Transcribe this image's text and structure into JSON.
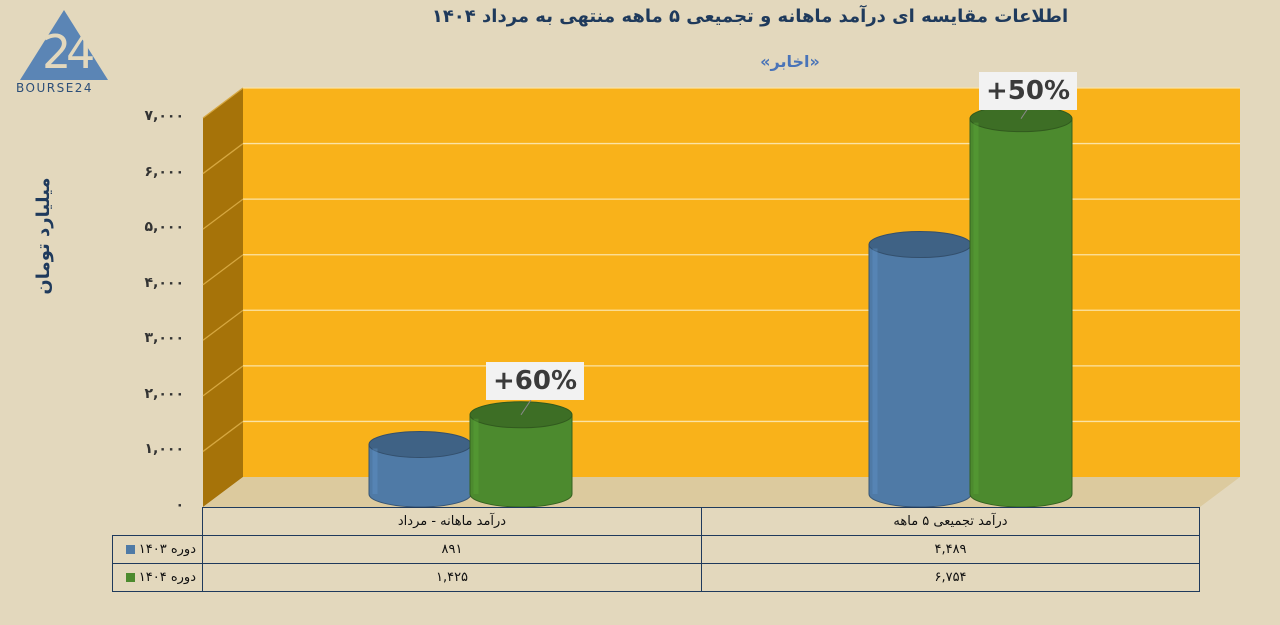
{
  "title": "اطلاعات مقایسه ای درآمد ماهانه و تجمیعی ۵ ماهه منتهی به مرداد ۱۴۰۴",
  "subtitle": "«اخابر»",
  "logo_text": "BOURSE24",
  "colors": {
    "background": "#e3d8bd",
    "plot": "#f9b21a",
    "wall_side": "#a67309",
    "series_1403": "#4f7aa6",
    "series_1404": "#4c8a2e"
  },
  "chart_data": {
    "type": "bar",
    "ylabel": "میلیارد تومان",
    "ylim": [
      0,
      7000
    ],
    "yticks": [
      "۰",
      "۱,۰۰۰",
      "۲,۰۰۰",
      "۳,۰۰۰",
      "۴,۰۰۰",
      "۵,۰۰۰",
      "۶,۰۰۰",
      "۷,۰۰۰"
    ],
    "categories": [
      "درآمد ماهانه - مرداد",
      "درآمد تجمیعی ۵ ماهه"
    ],
    "series": [
      {
        "name": "دوره ۱۴۰۳",
        "values": [
          891,
          4489
        ],
        "labels": [
          "۸۹۱",
          "۴,۴۸۹"
        ]
      },
      {
        "name": "دوره ۱۴۰۴",
        "values": [
          1425,
          6754
        ],
        "labels": [
          "۱,۴۲۵",
          "۶,۷۵۴"
        ]
      }
    ],
    "annotations": [
      "+60%",
      "+50%"
    ],
    "grid": true
  }
}
